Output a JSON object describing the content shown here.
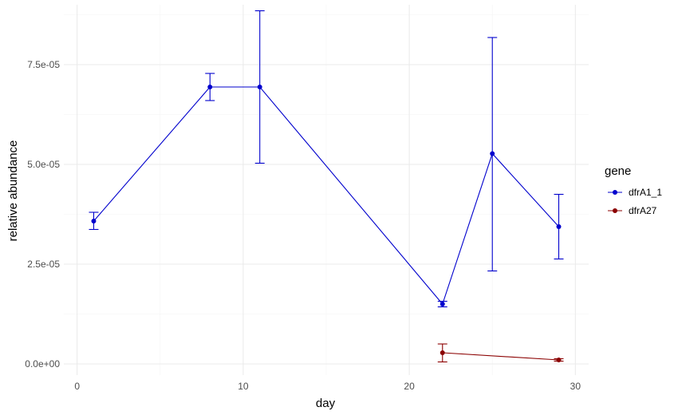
{
  "chart_data": {
    "type": "line",
    "xlabel": "day",
    "ylabel": "relative abundance",
    "xlim": [
      -0.8,
      30.8
    ],
    "ylim": [
      -2.8e-06,
      9e-05
    ],
    "x_ticks": [
      0,
      10,
      20,
      30
    ],
    "x_tick_labels": [
      "0",
      "10",
      "20",
      "30"
    ],
    "y_ticks": [
      0,
      2.5e-05,
      5e-05,
      7.5e-05
    ],
    "y_tick_labels": [
      "0.0e+00",
      "2.5e-05",
      "5.0e-05",
      "7.5e-05"
    ],
    "grid": true,
    "legend": {
      "title": "gene",
      "position": "right"
    },
    "series": [
      {
        "name": "dfrA1_1",
        "color": "#0000cd",
        "points": [
          {
            "x": 1,
            "y": 3.58e-05,
            "ymin": 3.37e-05,
            "ymax": 3.8e-05
          },
          {
            "x": 8,
            "y": 6.94e-05,
            "ymin": 6.6e-05,
            "ymax": 7.28e-05
          },
          {
            "x": 11,
            "y": 6.94e-05,
            "ymin": 5.03e-05,
            "ymax": 8.85e-05
          },
          {
            "x": 22,
            "y": 1.5e-05,
            "ymin": 1.43e-05,
            "ymax": 1.57e-05
          },
          {
            "x": 25,
            "y": 5.27e-05,
            "ymin": 2.33e-05,
            "ymax": 8.18e-05
          },
          {
            "x": 29,
            "y": 3.44e-05,
            "ymin": 2.63e-05,
            "ymax": 4.25e-05
          }
        ]
      },
      {
        "name": "dfrA27",
        "color": "#8b0000",
        "points": [
          {
            "x": 22,
            "y": 2.8e-06,
            "ymin": 5e-07,
            "ymax": 5e-06
          },
          {
            "x": 29,
            "y": 1e-06,
            "ymin": 7e-07,
            "ymax": 1.3e-06
          }
        ]
      }
    ]
  }
}
